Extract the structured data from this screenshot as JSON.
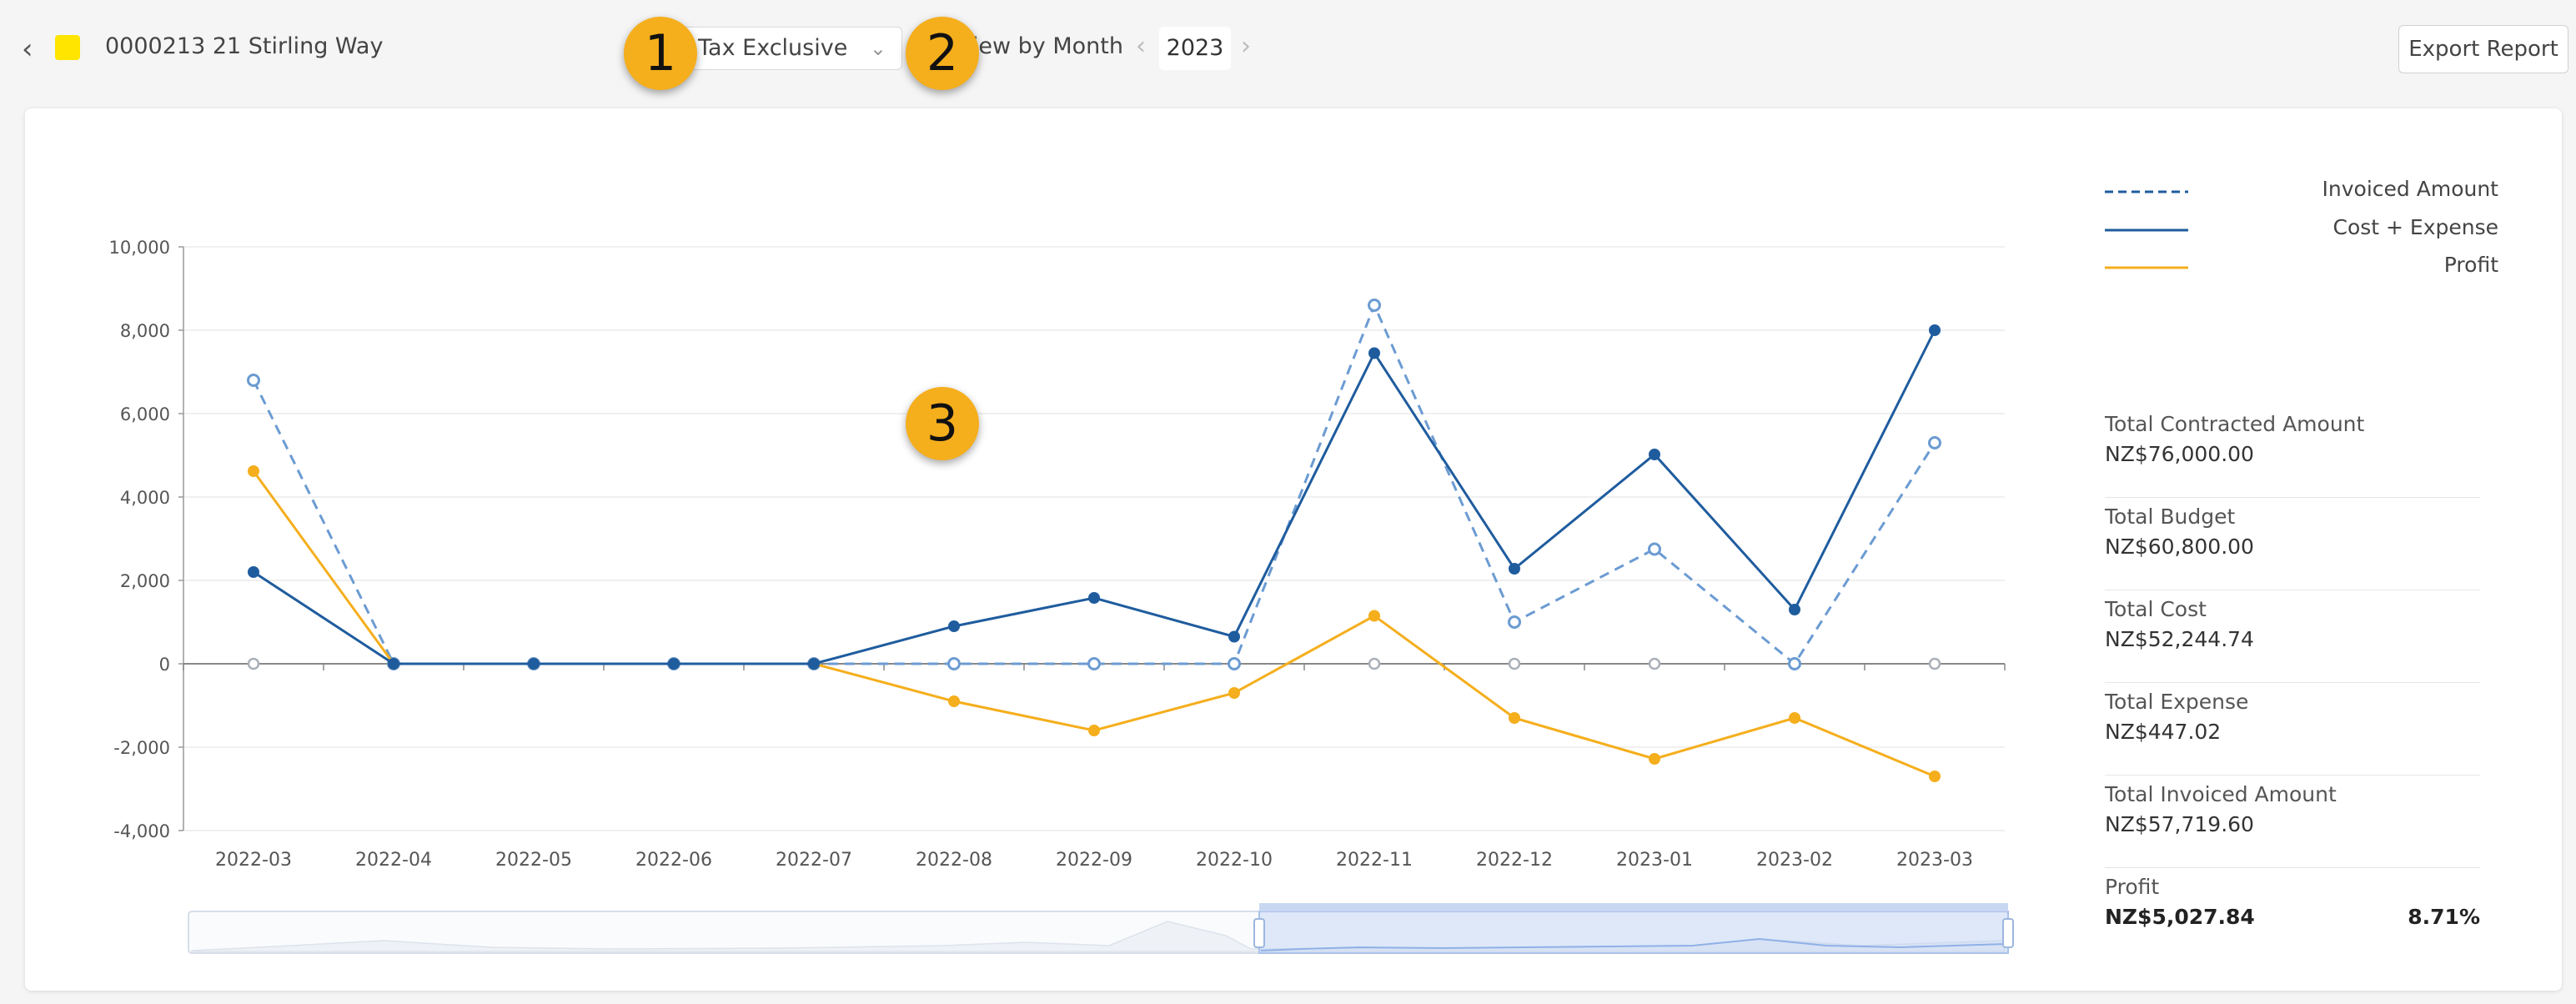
{
  "header": {
    "back_icon": "chevron-left-icon",
    "project_color": "#ffe500",
    "project_name": "0000213 21 Stirling Way",
    "tax_select": {
      "value": "Tax Exclusive"
    },
    "view_by_label": "View by Month",
    "year": "2023",
    "export_label": "Export Report"
  },
  "badges": [
    "1",
    "2",
    "3"
  ],
  "legend": [
    {
      "label": "Invoiced Amount",
      "style": "dashed",
      "color": "#1f5c9e"
    },
    {
      "label": "Cost + Expense",
      "style": "solid",
      "color": "#1f5c9e"
    },
    {
      "label": "Profit",
      "style": "solid",
      "color": "#f5ae1c"
    }
  ],
  "summary": [
    {
      "label": "Total Contracted Amount",
      "value": "NZ$76,000.00"
    },
    {
      "label": "Total Budget",
      "value": "NZ$60,800.00"
    },
    {
      "label": "Total Cost",
      "value": "NZ$52,244.74"
    },
    {
      "label": "Total Expense",
      "value": "NZ$447.02"
    },
    {
      "label": "Total Invoiced Amount",
      "value": "NZ$57,719.60"
    },
    {
      "label": "Profit",
      "value": "NZ$5,027.84",
      "percent": "8.71%"
    }
  ],
  "chart_data": {
    "type": "line",
    "categories": [
      "2022-03",
      "2022-04",
      "2022-05",
      "2022-06",
      "2022-07",
      "2022-08",
      "2022-09",
      "2022-10",
      "2022-11",
      "2022-12",
      "2023-01",
      "2023-02",
      "2023-03"
    ],
    "yticks": [
      "10,000",
      "8,000",
      "6,000",
      "4,000",
      "2,000",
      "0",
      "-2,000",
      "-4,000"
    ],
    "ylim": [
      -4000,
      10000
    ],
    "grid": true,
    "legend_position": "right",
    "series": [
      {
        "name": "Invoiced Amount",
        "style": "dashed",
        "color": "#6b9bd2",
        "values": [
          6800,
          0,
          0,
          0,
          0,
          0,
          0,
          0,
          8600,
          1000,
          2750,
          0,
          5300
        ]
      },
      {
        "name": "Cost + Expense",
        "style": "solid",
        "color": "#1f5c9e",
        "values": [
          2200,
          0,
          0,
          0,
          0,
          900,
          1580,
          650,
          7450,
          2280,
          5020,
          1300,
          8000
        ]
      },
      {
        "name": "Profit",
        "style": "solid",
        "color": "#f5ae1c",
        "values": [
          4620,
          0,
          0,
          0,
          0,
          -900,
          -1600,
          -700,
          1150,
          -1300,
          -2280,
          -1300,
          -2700
        ]
      }
    ],
    "zero_markers": true
  }
}
